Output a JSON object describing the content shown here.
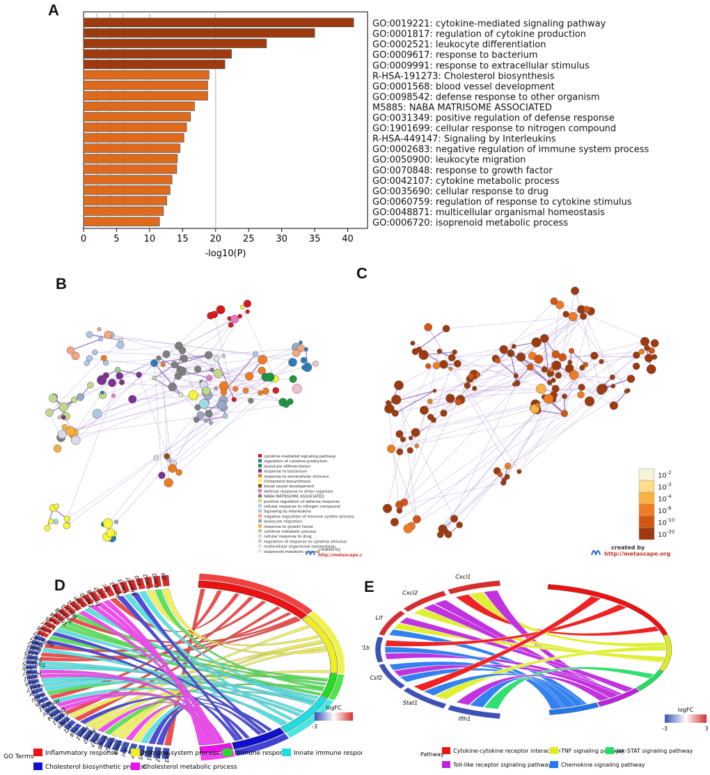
{
  "panels": {
    "a": "A",
    "b": "B",
    "c": "C",
    "d": "D",
    "e": "E"
  },
  "chart_data": [
    {
      "type": "bar",
      "orientation": "horizontal",
      "title": "",
      "xlabel": "-log10(P)",
      "ylabel": "",
      "xlim": [
        0,
        43
      ],
      "xticks": [
        0,
        5,
        10,
        15,
        20,
        25,
        30,
        35,
        40
      ],
      "grid_lines": [
        2,
        4,
        6,
        10,
        20
      ],
      "categories": [
        "GO:0019221: cytokine-mediated signaling pathway",
        "GO:0001817: regulation of cytokine production",
        "GO:0002521: leukocyte differentiation",
        "GO:0009617: response to bacterium",
        "GO:0009991: response to extracellular stimulus",
        "R-HSA-191273: Cholesterol biosynthesis",
        "GO:0001568: blood vessel development",
        "GO:0098542: defense response to other organism",
        "M5885: NABA MATRISOME ASSOCIATED",
        "GO:0031349: positive regulation of defense response",
        "GO:1901699: cellular response to nitrogen compound",
        "R-HSA-449147: Signaling by Interleukins",
        "GO:0002683: negative regulation of immune system process",
        "GO:0050900: leukocyte migration",
        "GO:0070848: response to growth factor",
        "GO:0042107: cytokine metabolic process",
        "GO:0035690: cellular response to drug",
        "GO:0060759: regulation of response to cytokine stimulus",
        "GO:0048871: multicellular organismal homeostasis",
        "GO:0006720: isoprenoid metabolic process"
      ],
      "values": [
        40.9,
        35.0,
        27.7,
        22.4,
        21.4,
        19.0,
        18.8,
        18.8,
        16.8,
        16.2,
        15.6,
        15.2,
        14.6,
        14.2,
        14.1,
        13.4,
        13.1,
        12.6,
        12.1,
        11.5
      ],
      "colors": [
        "#9e3a0e",
        "#9e3a0e",
        "#9e3a0e",
        "#9e3a0e",
        "#9e3a0e",
        "#e06a1b",
        "#e06a1b",
        "#e06a1b",
        "#e06a1b",
        "#e06a1b",
        "#e06a1b",
        "#e06a1b",
        "#e06a1b",
        "#e06a1b",
        "#e06a1b",
        "#e06a1b",
        "#e06a1b",
        "#e06a1b",
        "#e06a1b",
        "#e06a1b"
      ]
    }
  ],
  "network_b_legend": [
    {
      "label": "cytokine-mediated signaling pathway",
      "color": "#d7191c"
    },
    {
      "label": "regulation of cytokine production",
      "color": "#2c7bb6"
    },
    {
      "label": "leukocyte differentiation",
      "color": "#1a9641"
    },
    {
      "label": "response to bacterium",
      "color": "#7b3294"
    },
    {
      "label": "response to extracellular stimulus",
      "color": "#f07c22"
    },
    {
      "label": "Cholesterol biosynthesis",
      "color": "#f7f439"
    },
    {
      "label": "blood vessel development",
      "color": "#8c510a"
    },
    {
      "label": "defense response to other organism",
      "color": "#e377c2"
    },
    {
      "label": "NABA MATRISOME ASSOCIATED",
      "color": "#7f7f7f"
    },
    {
      "label": "positive regulation of defense response",
      "color": "#c2d98a"
    },
    {
      "label": "cellular response to nitrogen compound",
      "color": "#9edae5"
    },
    {
      "label": "Signaling by Interleukins",
      "color": "#aec7e8"
    },
    {
      "label": "negative regulation of immune system process",
      "color": "#f4a582"
    },
    {
      "label": "leukocyte migration",
      "color": "#9aa8c6"
    },
    {
      "label": "response to growth factor",
      "color": "#f5b041"
    },
    {
      "label": "cytokine metabolic process",
      "color": "#99d594"
    },
    {
      "label": "cellular response to drug",
      "color": "#f2c1d1"
    },
    {
      "label": "regulation of response to cytokine stimulus",
      "color": "#cbc3e3"
    },
    {
      "label": "multicellular organismal homeostasis",
      "color": "#dadaeb"
    },
    {
      "label": "isoprenoid metabolic process",
      "color": "#d9ead3"
    }
  ],
  "network_c_legend": [
    {
      "base": "10",
      "exp": "-2",
      "color": "#f7f3d6"
    },
    {
      "base": "10",
      "exp": "-3",
      "color": "#fddc8b"
    },
    {
      "base": "10",
      "exp": "-4",
      "color": "#fbb144"
    },
    {
      "base": "10",
      "exp": "-6",
      "color": "#f07c22"
    },
    {
      "base": "10",
      "exp": "-10",
      "color": "#d45511"
    },
    {
      "base": "10",
      "exp": "-20",
      "color": "#9e3a0e"
    }
  ],
  "credit": {
    "created_by": "created by",
    "url": "http://metascape.org"
  },
  "chord_d": {
    "genes": [
      "Olr",
      "Cxcl1",
      "Cxcl2",
      "Il10",
      "Slamf7",
      "Cxcl3",
      "Apoa1",
      "Src",
      "Ccl7",
      "Tnfrsf8",
      "Zap70",
      "Cbln",
      "Ccr1",
      "Npc1l1",
      "Tnfaip8",
      "Tnfrsf4",
      "Cd5",
      "Csf1r",
      "Cd86",
      "Tlr7",
      "Hsd17b7",
      "Ptgs2",
      "Fcgr1",
      "Ccr5",
      "Smahc",
      "Tnfrsf25",
      "Il1b",
      "Hmgcr",
      "Ifih1",
      "Mvk",
      "Dhcr7",
      "Fgr",
      "Cd5l",
      "Cfh",
      "Hmgcs1",
      "Nsdhl",
      "Dhcr24",
      "Cyp51",
      "Fdps",
      "Irf1",
      "Il18",
      "Irgm1",
      "Rsad2",
      "Ifi27",
      "Dnd6",
      "Oasl2",
      "Oas3",
      "Axl",
      "Irf7",
      "Tlr5",
      "Ifit1",
      "Ifit2",
      "Tlr3"
    ],
    "colorbar_title": "logFC",
    "colorbar_min": "-3",
    "legend_title": "GO Terms",
    "terms": [
      {
        "label": "Inflammatory response",
        "color": "#ee1111"
      },
      {
        "label": "Immune system process",
        "color": "#eeee22"
      },
      {
        "label": "Immune response",
        "color": "#22dd22"
      },
      {
        "label": "Innate immune response",
        "color": "#22dddd"
      },
      {
        "label": "Cholesterol biosynthetic process",
        "color": "#1111cc"
      },
      {
        "label": "Cholesterol metabolic process",
        "color": "#ee11ee"
      }
    ]
  },
  "chord_e": {
    "genes": [
      "Cxcl1",
      "Cxcl2",
      "Lif",
      "Il1b",
      "Csf2",
      "Stat1",
      "Ifih1"
    ],
    "colorbar_title": "logFC",
    "colorbar_min": "-3",
    "colorbar_max": "3",
    "legend_title": "Pathway",
    "pathways": [
      {
        "label": "Cytokine-cytokine receptor interaction",
        "color": "#ee1111"
      },
      {
        "label": "TNF signaling pathway",
        "color": "#ddee22"
      },
      {
        "label": "Jak-STAT signaling pathway",
        "color": "#22dd66"
      },
      {
        "label": "Toll-like receptor signaling pathway",
        "color": "#bb22dd"
      },
      {
        "label": "Chemokine signaling pathway",
        "color": "#2277ee"
      }
    ]
  }
}
